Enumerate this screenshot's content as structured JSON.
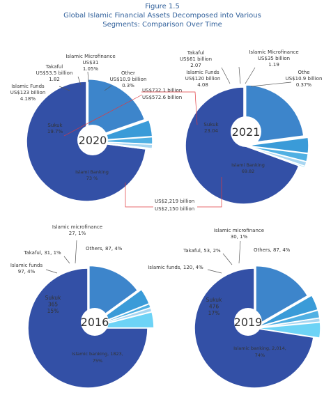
{
  "header": {
    "figure_label": "Figure 1.5",
    "title_line1": "Global Islamic Financial Assets Decomposed into Various",
    "title_line2": "Segments: Comparison Over Time"
  },
  "colors": {
    "islamic_banking": "#3350a6",
    "sukuk": "#3d85cb",
    "islamic_funds": "#3a9bd8",
    "takaful": "#50b0e3",
    "microfinance": "#a7d6f1",
    "other": "#6dd3f6",
    "leader_line": "#e0393e",
    "header_text": "#2f5f9a"
  },
  "chart_data": [
    {
      "type": "pie",
      "year_label": "2020",
      "slices": [
        {
          "segment": "Islamic Banking",
          "pct": 73.0
        },
        {
          "segment": "Sukuk",
          "pct": 19.7
        },
        {
          "segment": "Islamic Funds",
          "pct": 4.18
        },
        {
          "segment": "Takaful",
          "pct": 1.82
        },
        {
          "segment": "Islamic Microfinance",
          "pct": 1.05
        },
        {
          "segment": "Other",
          "pct": 0.3
        }
      ],
      "labels": {
        "banking": [
          "Islami Banking",
          "73 %"
        ],
        "sukuk": [
          "Sukuk",
          "19.7%"
        ],
        "funds": [
          "Islamic Funds",
          "US$123 billion",
          "4.18%"
        ],
        "takaful": [
          "Takaful",
          "US$53.5 billion",
          "1.82"
        ],
        "micro": [
          "Islamic Microfinance",
          "US$31",
          "1.05%"
        ],
        "other": [
          "Other",
          "US$10.9 billion",
          "0.3%"
        ]
      },
      "annotations": {
        "sukuk_value": "US$572.6 billion",
        "banking_value": "US$2,150 billion"
      }
    },
    {
      "type": "pie",
      "year_label": "2021",
      "slices": [
        {
          "segment": "Islami Banking",
          "pct": 69.82
        },
        {
          "segment": "Sukuk",
          "pct": 23.04
        },
        {
          "segment": "Islamic Funds",
          "pct": 4.08
        },
        {
          "segment": "Takaful",
          "pct": 2.07
        },
        {
          "segment": "Islamic Microfinance",
          "pct": 1.19
        },
        {
          "segment": "Othe",
          "pct": 0.37
        }
      ],
      "labels": {
        "banking": [
          "Islami Banking",
          "69.82"
        ],
        "sukuk": [
          "Sukuk",
          "23.04"
        ],
        "funds": [
          "Islamic Funds",
          "US$120 billion",
          "4.08"
        ],
        "takaful": [
          "Takaful",
          "US$61 billion",
          "2.07"
        ],
        "micro": [
          "Islamic Microfinance",
          "US$35 billion",
          "1.19"
        ],
        "other": [
          "Othe",
          "US$10.9 billion",
          "0.37%"
        ]
      },
      "annotations": {
        "sukuk_value": "US$732.1 billion",
        "banking_value": "US$2,219 billion"
      }
    },
    {
      "type": "pie",
      "year_label": "2016",
      "slices": [
        {
          "segment": "Islamic banking",
          "value": 1823,
          "pct": 75
        },
        {
          "segment": "Sukuk",
          "value": 365,
          "pct": 15
        },
        {
          "segment": "Islamic funds",
          "value": 97,
          "pct": 4
        },
        {
          "segment": "Takaful",
          "value": 31,
          "pct": 1
        },
        {
          "segment": "Islamic microfinance",
          "value": 27,
          "pct": 1
        },
        {
          "segment": "Others",
          "value": 87,
          "pct": 4
        }
      ],
      "labels": {
        "banking": [
          "Islamic banking, 1823,",
          "75%"
        ],
        "sukuk": [
          "Sukuk",
          "365",
          "15%"
        ],
        "funds": [
          "Islamic funds",
          "97, 4%"
        ],
        "takaful": [
          "Takaful, 31, 1%"
        ],
        "micro": [
          "Islamic microfinance",
          "27, 1%"
        ],
        "other": [
          "Others, 87, 4%"
        ]
      }
    },
    {
      "type": "pie",
      "year_label": "2019",
      "slices": [
        {
          "segment": "Islamic banking",
          "value": 2014,
          "pct": 74
        },
        {
          "segment": "Sukuk",
          "value": 476,
          "pct": 17
        },
        {
          "segment": "Islamic funds",
          "value": 120,
          "pct": 4
        },
        {
          "segment": "Takaful",
          "value": 53,
          "pct": 2
        },
        {
          "segment": "Islamic microfinance",
          "value": 30,
          "pct": 1
        },
        {
          "segment": "Others",
          "value": 87,
          "pct": 4
        }
      ],
      "labels": {
        "banking": [
          "Islamic banking, 2,014,",
          "74%"
        ],
        "sukuk": [
          "Sukuk",
          "476",
          "17%"
        ],
        "funds": [
          "Islamic funds, 120, 4%"
        ],
        "takaful": [
          "Takaful, 53, 2%"
        ],
        "micro": [
          "Islamic microfinance",
          "30, 1%"
        ],
        "other": [
          "Others, 87, 4%"
        ]
      }
    }
  ]
}
